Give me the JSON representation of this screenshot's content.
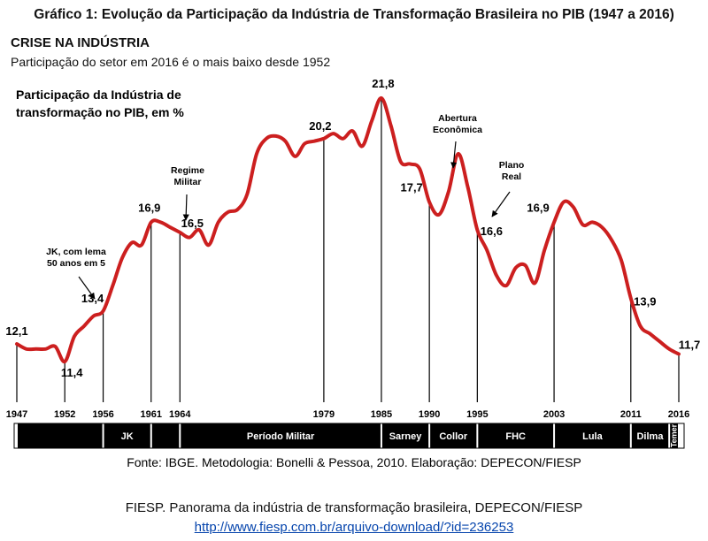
{
  "figure": {
    "title": "Gráfico 1: Evolução da Participação da Indústria de Transformação Brasileira no PIB (1947 a 2016)",
    "caption": "FIESP. Panorama da indústria de transformação brasileira, DEPECON/FIESP",
    "link": "http://www.fiesp.com.br/arquivo-download/?id=236253"
  },
  "chart_data": {
    "type": "line",
    "title": "CRISE NA INDÚSTRIA",
    "subtitle": "Participação do setor em 2016 é o mais baixo desde 1952",
    "ylabel": [
      "Participação da Indústria de",
      "transformação no PIB, em %"
    ],
    "source": "Fonte: IBGE. Metodologia: Bonelli & Pessoa, 2010. Elaboração: DEPECON/FIESP",
    "series_color": "#cc1f1f",
    "ylim": [
      9.8,
      22.6
    ],
    "xlim": [
      1947,
      2016
    ],
    "series": [
      {
        "x": [
          1947,
          1948,
          1949,
          1950,
          1951,
          1952,
          1953,
          1954,
          1955,
          1956,
          1957,
          1958,
          1959,
          1960,
          1961,
          1962,
          1963,
          1964,
          1965,
          1966,
          1967,
          1968,
          1969,
          1970,
          1971,
          1972,
          1973,
          1974,
          1975,
          1976,
          1977,
          1978,
          1979,
          1980,
          1981,
          1982,
          1983,
          1984,
          1985,
          1986,
          1987,
          1988,
          1989,
          1990,
          1991,
          1992,
          1993,
          1994,
          1995,
          1996,
          1997,
          1998,
          1999,
          2000,
          2001,
          2002,
          2003,
          2004,
          2005,
          2006,
          2007,
          2008,
          2009,
          2010,
          2011,
          2012,
          2013,
          2014,
          2015,
          2016
        ],
        "y": [
          12.1,
          11.9,
          11.9,
          11.9,
          12.0,
          11.4,
          12.4,
          12.8,
          13.2,
          13.4,
          14.4,
          15.5,
          16.1,
          16.0,
          16.9,
          16.9,
          16.7,
          16.5,
          16.3,
          16.6,
          16.0,
          16.9,
          17.3,
          17.4,
          18.0,
          19.6,
          20.2,
          20.3,
          20.1,
          19.5,
          20.0,
          20.1,
          20.2,
          20.4,
          20.2,
          20.5,
          19.9,
          20.9,
          21.8,
          20.7,
          19.3,
          19.2,
          19.0,
          17.7,
          17.2,
          18.1,
          19.6,
          18.3,
          16.6,
          15.8,
          14.8,
          14.4,
          15.1,
          15.2,
          14.5,
          15.8,
          16.9,
          17.7,
          17.5,
          16.8,
          16.9,
          16.7,
          16.2,
          15.4,
          13.9,
          12.8,
          12.5,
          12.2,
          11.9,
          11.7
        ]
      }
    ],
    "highlights": [
      {
        "year": 1947,
        "label": "12,1"
      },
      {
        "year": 1952,
        "label": "11,4"
      },
      {
        "year": 1956,
        "label": "13,4"
      },
      {
        "year": 1961,
        "label": "16,9"
      },
      {
        "year": 1964,
        "label": "16,5"
      },
      {
        "year": 1979,
        "label": "20,2"
      },
      {
        "year": 1985,
        "label": "21,8"
      },
      {
        "year": 1990,
        "label": "17,7"
      },
      {
        "year": 1995,
        "label": "16,6"
      },
      {
        "year": 2003,
        "label": "16,9"
      },
      {
        "year": 2011,
        "label": "13,9"
      },
      {
        "year": 2016,
        "label": "11,7"
      }
    ],
    "annotations": [
      {
        "text": [
          "JK, com lema",
          "50 anos em 5"
        ],
        "target_year": 1955
      },
      {
        "text": [
          "Regime",
          "Militar"
        ],
        "target_year": 1964
      },
      {
        "text": [
          "Abertura",
          "Econômica"
        ],
        "target_year": 1991
      },
      {
        "text": [
          "Plano",
          "Real"
        ],
        "target_year": 1994
      }
    ],
    "periods": [
      {
        "label": "",
        "start": 1947,
        "end": 1956
      },
      {
        "label": "JK",
        "start": 1956,
        "end": 1961
      },
      {
        "label": "",
        "start": 1961,
        "end": 1964
      },
      {
        "label": "Período Militar",
        "start": 1964,
        "end": 1985
      },
      {
        "label": "Sarney",
        "start": 1985,
        "end": 1990
      },
      {
        "label": "Collor",
        "start": 1990,
        "end": 1995
      },
      {
        "label": "FHC",
        "start": 1995,
        "end": 2003
      },
      {
        "label": "Lula",
        "start": 2003,
        "end": 2011
      },
      {
        "label": "Dilma",
        "start": 2011,
        "end": 2015
      },
      {
        "label": "Temer",
        "start": 2015,
        "end": 2016
      }
    ]
  }
}
